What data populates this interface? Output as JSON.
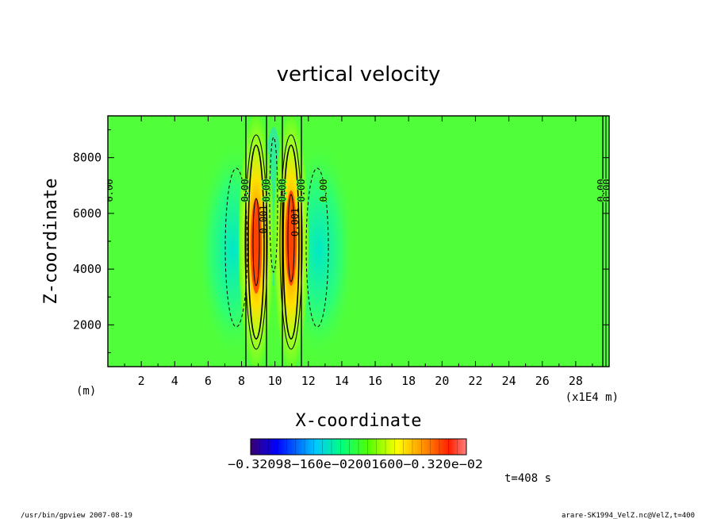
{
  "chart_data": {
    "type": "heatmap",
    "title": "vertical velocity",
    "xlabel": "X-coordinate",
    "ylabel": "Z-coordinate",
    "x_unit_label": "(m)",
    "x_scale_label": "(x1E4 m)",
    "xlim": [
      0,
      30
    ],
    "ylim": [
      500,
      9500
    ],
    "x_ticks": [
      "2",
      "4",
      "6",
      "8",
      "10",
      "12",
      "14",
      "16",
      "18",
      "20",
      "22",
      "24",
      "26",
      "28"
    ],
    "y_ticks": [
      "2000",
      "4000",
      "6000",
      "8000"
    ],
    "contour_labels": [
      "0.00",
      "0.00",
      "0.00",
      "0.00",
      "0.00",
      "0.00",
      "-0.001",
      "0.001",
      "0.00",
      "0.00"
    ],
    "colorbar": {
      "label_text": "−0.32098−160e−02001600−0.320e−02",
      "colors": [
        "#3b0070",
        "#0000ff",
        "#00c8ff",
        "#00ff80",
        "#55ff00",
        "#ffff00",
        "#ff8000",
        "#ff2000",
        "#ff8080"
      ]
    },
    "time_label": "t=408 s",
    "footer_left": "/usr/bin/gpview   2007-08-19",
    "footer_right": "arare-SK1994_VelZ.nc@VelZ,t=400"
  }
}
